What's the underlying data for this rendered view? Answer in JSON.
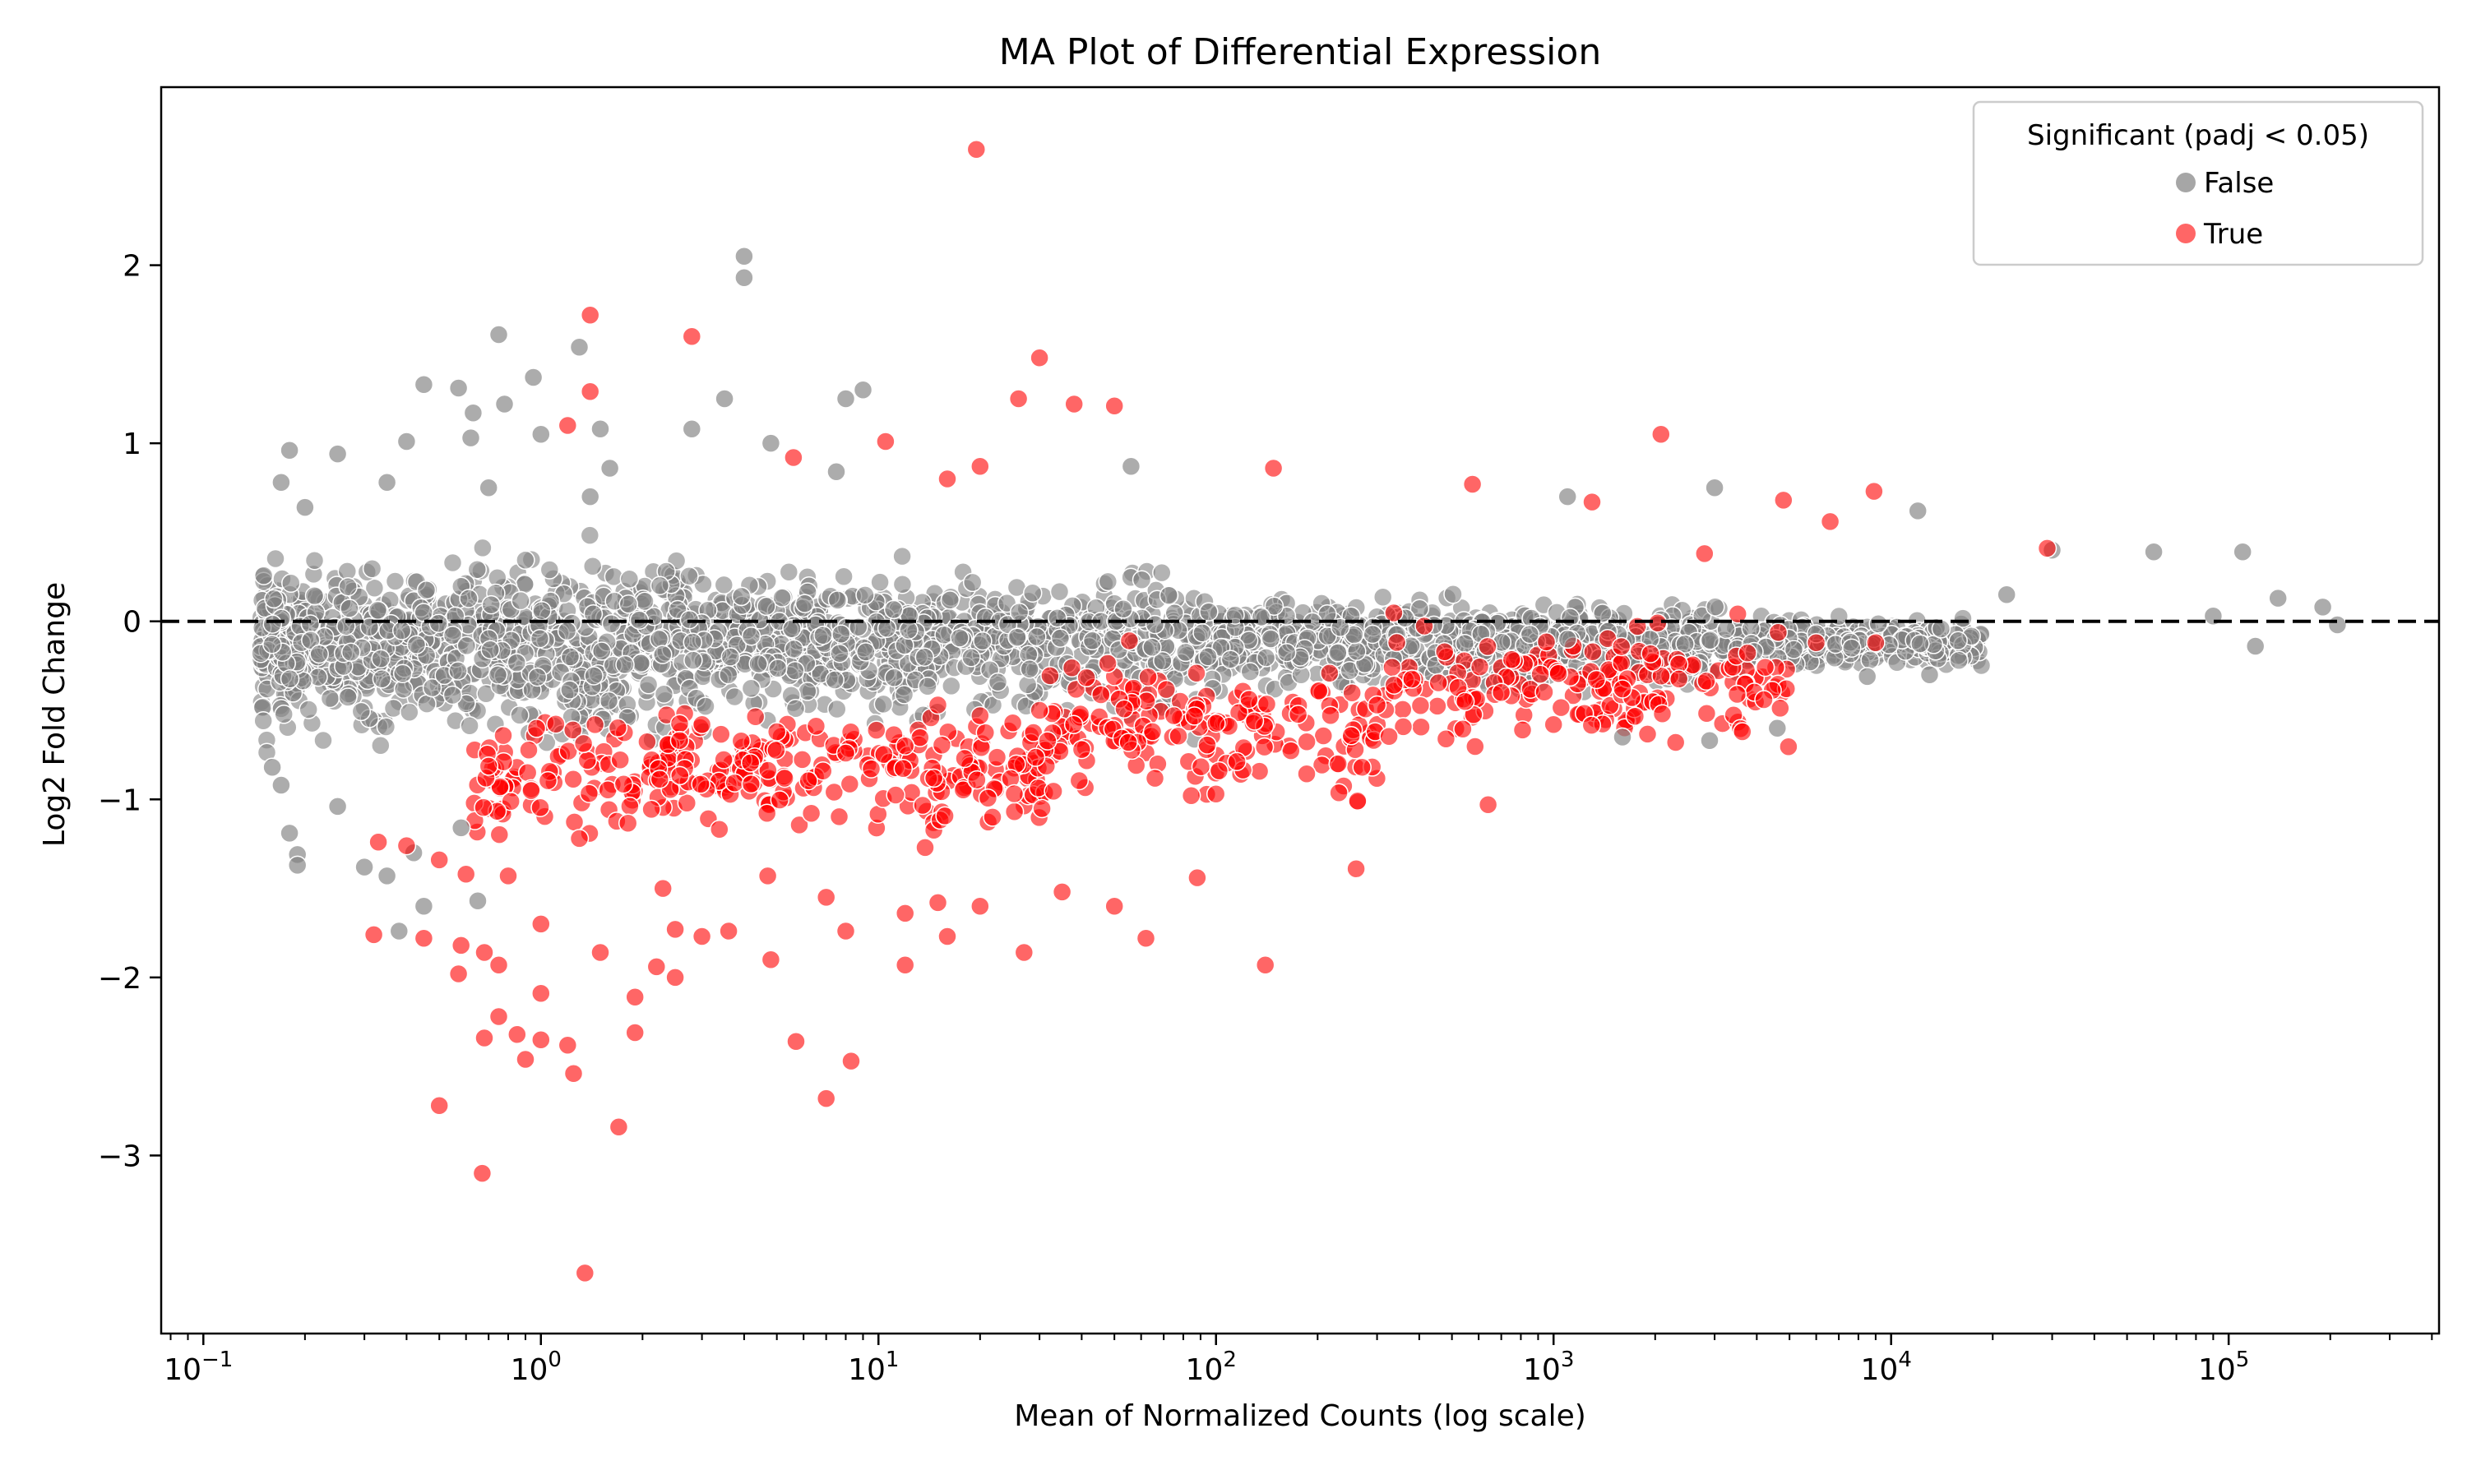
{
  "chart_data": {
    "type": "scatter",
    "title": "MA Plot of Differential Expression",
    "xlabel": "Mean of Normalized Counts (log scale)",
    "ylabel": "Log2 Fold Change",
    "x_scale": "log",
    "xlim": [
      0.075,
      420000
    ],
    "ylim": [
      -4.0,
      3.0
    ],
    "x_ticks": [
      {
        "value": 0.1,
        "base": "10",
        "exp": "−1"
      },
      {
        "value": 1,
        "base": "10",
        "exp": "0"
      },
      {
        "value": 10,
        "base": "10",
        "exp": "1"
      },
      {
        "value": 100,
        "base": "10",
        "exp": "2"
      },
      {
        "value": 1000,
        "base": "10",
        "exp": "3"
      },
      {
        "value": 10000,
        "base": "10",
        "exp": "4"
      },
      {
        "value": 100000,
        "base": "10",
        "exp": "5"
      }
    ],
    "y_ticks": [
      {
        "value": 2,
        "label": "2"
      },
      {
        "value": 1,
        "label": "1"
      },
      {
        "value": 0,
        "label": "0"
      },
      {
        "value": -1,
        "label": "−1"
      },
      {
        "value": -2,
        "label": "−2"
      },
      {
        "value": -3,
        "label": "−3"
      }
    ],
    "reference_line": {
      "y": 0,
      "style": "dashed",
      "color": "#000000"
    },
    "legend": {
      "title": "Significant (padj < 0.05)",
      "position": "top-right",
      "entries": [
        {
          "label": "False",
          "color": "#808080"
        },
        {
          "label": "True",
          "color": "#ff0000"
        }
      ]
    },
    "grid": false,
    "series": [
      {
        "name": "False",
        "color": "#808080",
        "note": "dense cloud of non-significant genes centered on 0; representative outliers listed",
        "points": [
          [
            4.0,
            2.05
          ],
          [
            4.0,
            1.93
          ],
          [
            0.75,
            1.61
          ],
          [
            1.3,
            1.54
          ],
          [
            0.95,
            1.37
          ],
          [
            0.45,
            1.33
          ],
          [
            0.57,
            1.31
          ],
          [
            9.0,
            1.3
          ],
          [
            8.0,
            1.25
          ],
          [
            3.5,
            1.25
          ],
          [
            0.78,
            1.22
          ],
          [
            0.63,
            1.17
          ],
          [
            1.5,
            1.08
          ],
          [
            2.8,
            1.08
          ],
          [
            1.0,
            1.05
          ],
          [
            0.62,
            1.03
          ],
          [
            0.4,
            1.01
          ],
          [
            4.8,
            1.0
          ],
          [
            0.18,
            0.96
          ],
          [
            0.25,
            0.94
          ],
          [
            1.6,
            0.86
          ],
          [
            0.35,
            0.78
          ],
          [
            0.17,
            0.78
          ],
          [
            56,
            0.87
          ],
          [
            7.5,
            0.84
          ],
          [
            0.7,
            0.75
          ],
          [
            1.4,
            0.7
          ],
          [
            0.2,
            0.64
          ],
          [
            30000.0,
            0.4
          ],
          [
            110000.0,
            0.39
          ],
          [
            60000.0,
            0.39
          ],
          [
            140000.0,
            0.13
          ],
          [
            190000.0,
            0.08
          ],
          [
            210000.0,
            -0.02
          ],
          [
            120000.0,
            -0.14
          ],
          [
            90000.0,
            0.03
          ],
          [
            12000.0,
            0.62
          ],
          [
            22000.0,
            0.15
          ],
          [
            3000.0,
            0.75
          ],
          [
            1100.0,
            0.7
          ],
          [
            0.16,
            -0.82
          ],
          [
            0.17,
            -0.92
          ],
          [
            0.18,
            -1.19
          ],
          [
            0.19,
            -1.31
          ],
          [
            0.19,
            -1.37
          ],
          [
            0.25,
            -1.04
          ],
          [
            0.3,
            -1.38
          ],
          [
            0.35,
            -1.43
          ],
          [
            0.38,
            -1.74
          ],
          [
            0.45,
            -1.6
          ],
          [
            0.42,
            -1.3
          ],
          [
            0.58,
            -1.16
          ],
          [
            0.65,
            -1.57
          ],
          [
            4600.0,
            -0.6
          ],
          [
            1600.0,
            -0.65
          ],
          [
            2900.0,
            -0.67
          ],
          [
            8500.0,
            -0.31
          ],
          [
            13000.0,
            -0.3
          ],
          [
            6000.0,
            -0.07
          ],
          [
            1100.0,
            -0.1
          ]
        ]
      },
      {
        "name": "True",
        "color": "#ff0000",
        "note": "significant genes, mostly negative fold change; representative points listed",
        "points": [
          [
            19.5,
            2.65
          ],
          [
            1.4,
            1.72
          ],
          [
            2.8,
            1.6
          ],
          [
            30,
            1.48
          ],
          [
            1.4,
            1.29
          ],
          [
            26,
            1.25
          ],
          [
            38,
            1.22
          ],
          [
            50,
            1.21
          ],
          [
            1.2,
            1.1
          ],
          [
            2080.0,
            1.05
          ],
          [
            10.5,
            1.01
          ],
          [
            5.6,
            0.92
          ],
          [
            20,
            0.87
          ],
          [
            148,
            0.86
          ],
          [
            575,
            0.77
          ],
          [
            16,
            0.8
          ],
          [
            8900.0,
            0.73
          ],
          [
            4800.0,
            0.68
          ],
          [
            1300.0,
            0.67
          ],
          [
            6600.0,
            0.56
          ],
          [
            29000.0,
            0.41
          ],
          [
            2800.0,
            0.38
          ],
          [
            1.35,
            -3.66
          ],
          [
            0.67,
            -3.1
          ],
          [
            1.7,
            -2.84
          ],
          [
            0.5,
            -2.72
          ],
          [
            7.0,
            -2.68
          ],
          [
            1.25,
            -2.54
          ],
          [
            8.3,
            -2.47
          ],
          [
            0.9,
            -2.46
          ],
          [
            1.2,
            -2.38
          ],
          [
            0.68,
            -2.34
          ],
          [
            5.7,
            -2.36
          ],
          [
            1.0,
            -2.35
          ],
          [
            0.85,
            -2.32
          ],
          [
            1.9,
            -2.31
          ],
          [
            0.75,
            -2.22
          ],
          [
            1.0,
            -2.09
          ],
          [
            1.9,
            -2.11
          ],
          [
            2.5,
            -2.0
          ],
          [
            2.2,
            -1.94
          ],
          [
            4.8,
            -1.9
          ],
          [
            12,
            -1.93
          ],
          [
            140,
            -1.93
          ],
          [
            0.57,
            -1.98
          ],
          [
            0.75,
            -1.93
          ],
          [
            1.5,
            -1.86
          ],
          [
            27,
            -1.86
          ],
          [
            62,
            -1.78
          ],
          [
            0.32,
            -1.76
          ],
          [
            0.45,
            -1.78
          ],
          [
            0.58,
            -1.82
          ],
          [
            0.68,
            -1.86
          ],
          [
            8,
            -1.74
          ],
          [
            3.0,
            -1.77
          ],
          [
            3.6,
            -1.74
          ],
          [
            16,
            -1.77
          ],
          [
            1.0,
            -1.7
          ],
          [
            2.5,
            -1.73
          ],
          [
            12,
            -1.64
          ],
          [
            15,
            -1.58
          ],
          [
            50,
            -1.6
          ],
          [
            7,
            -1.55
          ],
          [
            88,
            -1.44
          ],
          [
            260,
            -1.39
          ],
          [
            640,
            -1.03
          ],
          [
            0.33,
            -1.24
          ],
          [
            0.4,
            -1.26
          ],
          [
            0.5,
            -1.34
          ],
          [
            0.6,
            -1.42
          ],
          [
            0.8,
            -1.43
          ],
          [
            1.3,
            -1.22
          ],
          [
            2.3,
            -1.5
          ],
          [
            4.7,
            -1.43
          ],
          [
            20,
            -1.6
          ],
          [
            35,
            -1.52
          ],
          [
            100,
            -0.97
          ],
          [
            230,
            -0.8
          ],
          [
            480,
            -0.66
          ],
          [
            1000.0,
            -0.58
          ],
          [
            2100.0,
            -0.52
          ],
          [
            2300.0,
            -0.68
          ],
          [
            15,
            -0.47
          ],
          [
            20,
            -0.53
          ],
          [
            25,
            -0.57
          ],
          [
            30,
            -0.5
          ],
          [
            40,
            -0.72
          ],
          [
            3,
            -0.58
          ],
          [
            5,
            -0.62
          ],
          [
            8,
            -0.74
          ],
          [
            12,
            -0.7
          ],
          [
            18,
            -0.77
          ],
          [
            55,
            -0.68
          ],
          [
            75,
            -0.53
          ],
          [
            130,
            -0.56
          ],
          [
            300,
            -0.47
          ],
          [
            700,
            -0.4
          ],
          [
            1600.0,
            -0.38
          ],
          [
            3500.0,
            -0.41
          ],
          [
            4200.0,
            -0.44
          ],
          [
            6000.0,
            -0.12
          ],
          [
            9000.0,
            -0.12
          ]
        ]
      }
    ]
  }
}
